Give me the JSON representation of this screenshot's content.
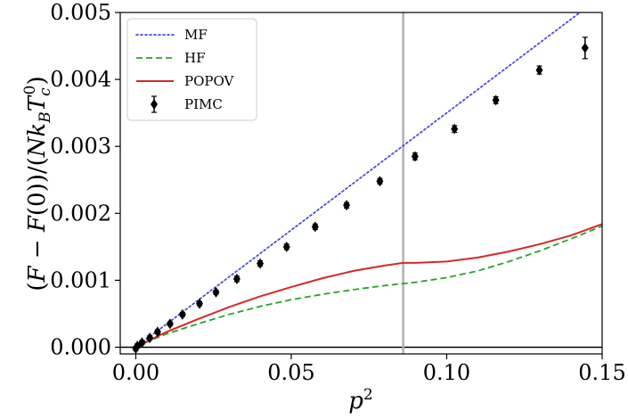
{
  "chart_data": {
    "type": "line",
    "xlabel": "p²",
    "ylabel": "(F − F(0))/(Nk_B T_c^0)",
    "xlim": [
      -0.005,
      0.15
    ],
    "ylim": [
      -0.0001,
      0.005
    ],
    "xticks": [
      "0.00",
      "0.05",
      "0.10",
      "0.15"
    ],
    "yticks": [
      "0.000",
      "0.001",
      "0.002",
      "0.003",
      "0.004",
      "0.005"
    ],
    "xtick_values": [
      0.0,
      0.05,
      0.1,
      0.15
    ],
    "ytick_values": [
      0.0,
      0.001,
      0.002,
      0.003,
      0.004,
      0.005
    ],
    "hline": 0.0,
    "vline": 0.086,
    "legend_position": "top-left",
    "grid": false,
    "series": [
      {
        "name": "MF",
        "style": "dotted",
        "color": "#4a4ae6",
        "x": [
          0.0,
          0.02,
          0.04,
          0.06,
          0.08,
          0.1,
          0.12,
          0.14,
          0.15
        ],
        "y": [
          0.0,
          0.0007,
          0.0014,
          0.0021,
          0.0028,
          0.0035,
          0.0042,
          0.0049,
          0.00525
        ]
      },
      {
        "name": "HF",
        "style": "dashed",
        "color": "#2ca02c",
        "x": [
          0.0,
          0.005,
          0.01,
          0.02,
          0.03,
          0.04,
          0.05,
          0.06,
          0.07,
          0.08,
          0.086,
          0.09,
          0.1,
          0.11,
          0.12,
          0.13,
          0.14,
          0.15
        ],
        "y": [
          0.0,
          0.00011,
          0.0002,
          0.00035,
          0.00049,
          0.00061,
          0.00071,
          0.00079,
          0.00086,
          0.00092,
          0.00095,
          0.00097,
          0.00104,
          0.00114,
          0.00128,
          0.00144,
          0.00162,
          0.00181
        ]
      },
      {
        "name": "POPOV",
        "style": "solid",
        "color": "#d62728",
        "x": [
          0.0,
          0.005,
          0.01,
          0.02,
          0.03,
          0.04,
          0.05,
          0.06,
          0.07,
          0.08,
          0.086,
          0.09,
          0.1,
          0.11,
          0.12,
          0.13,
          0.14,
          0.15
        ],
        "y": [
          0.0,
          0.00012,
          0.00023,
          0.00042,
          0.0006,
          0.00076,
          0.0009,
          0.00103,
          0.00114,
          0.00122,
          0.00126,
          0.00126,
          0.00128,
          0.00134,
          0.00143,
          0.00154,
          0.00167,
          0.00184
        ]
      },
      {
        "name": "PIMC",
        "style": "errorbar",
        "color": "#000000",
        "x": [
          0.0,
          0.0005,
          0.002,
          0.0045,
          0.007,
          0.011,
          0.015,
          0.0205,
          0.0258,
          0.0325,
          0.04,
          0.0485,
          0.0577,
          0.0678,
          0.0785,
          0.0898,
          0.1025,
          0.1158,
          0.1298,
          0.1445
        ],
        "y": [
          -2e-05,
          2e-05,
          7e-05,
          0.00014,
          0.00023,
          0.00035,
          0.00049,
          0.00065,
          0.00082,
          0.00102,
          0.00125,
          0.0015,
          0.0018,
          0.00212,
          0.00248,
          0.00285,
          0.00326,
          0.00369,
          0.00414,
          0.00447
        ],
        "err": [
          3e-05,
          3e-05,
          3e-05,
          3e-05,
          3e-05,
          3e-05,
          3e-05,
          3e-05,
          3e-05,
          4e-05,
          4e-05,
          4e-05,
          4e-05,
          4e-05,
          4e-05,
          5e-05,
          5e-05,
          5e-05,
          6e-05,
          0.00016
        ]
      }
    ]
  }
}
